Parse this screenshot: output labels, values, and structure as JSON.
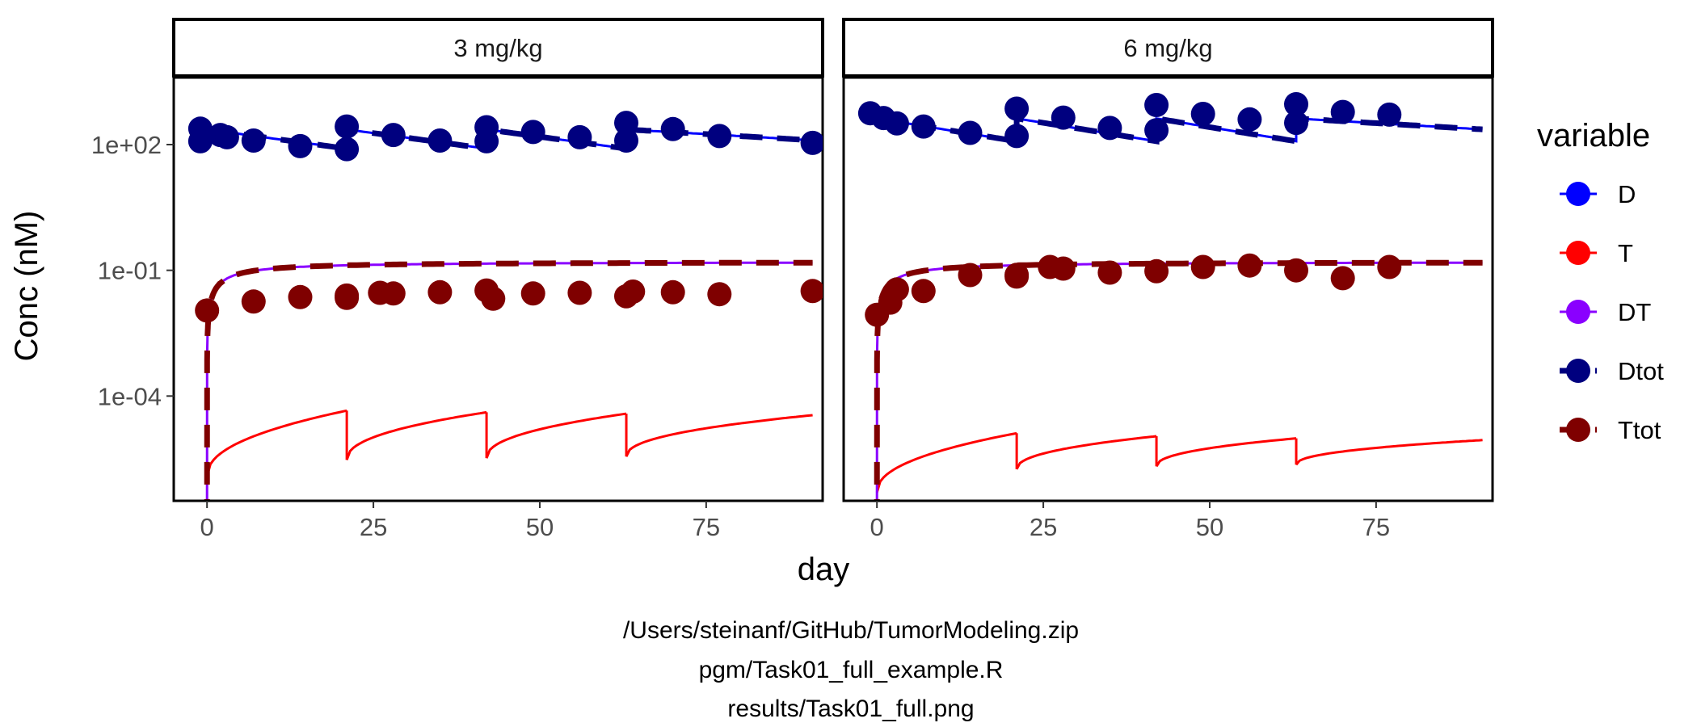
{
  "chart_data": {
    "type": "line",
    "xlabel": "day",
    "ylabel": "Conc (nM)",
    "y_scale": "log10",
    "xlim": [
      -5,
      92.5
    ],
    "ylim_log10": [
      -6.5,
      3.6
    ],
    "x_ticks": [
      0,
      25,
      50,
      75
    ],
    "x_tick_labels": [
      "0",
      "25",
      "50",
      "75"
    ],
    "y_ticks_log10": [
      2,
      -1,
      -4
    ],
    "y_tick_labels": [
      "1e+02",
      "1e-01",
      "1e-04"
    ],
    "grid": false,
    "legend": {
      "title": "variable",
      "position": "right",
      "entries": [
        {
          "name": "D",
          "color": "#0000FF",
          "line": "solid"
        },
        {
          "name": "T",
          "color": "#FF0000",
          "line": "solid"
        },
        {
          "name": "DT",
          "color": "#8A00FF",
          "line": "solid"
        },
        {
          "name": "Dtot",
          "color": "#00007F",
          "line": "dashed"
        },
        {
          "name": "Ttot",
          "color": "#7F0000",
          "line": "dashed"
        }
      ]
    },
    "panels": [
      {
        "label": "3 mg/kg",
        "dose_days": [
          0,
          21,
          42,
          63
        ],
        "D": {
          "peak": 230,
          "trough": 80
        },
        "Dtot": {
          "peak": 230,
          "trough": 80
        },
        "DT": {
          "start": 1e-07,
          "plateau": 0.16
        },
        "Ttot": {
          "start": 1e-07,
          "plateau": 0.16
        },
        "T_segments": [
          [
            1.2e-06,
            4.5e-05
          ],
          [
            3e-06,
            4.1e-05
          ],
          [
            3.3e-06,
            3.8e-05
          ],
          [
            3.6e-06,
            3.5e-05
          ]
        ],
        "observed": {
          "Dtot": [
            [
              -1,
              240
            ],
            [
              -1,
              120
            ],
            [
              2,
              170
            ],
            [
              3,
              150
            ],
            [
              7,
              125
            ],
            [
              14,
              92
            ],
            [
              21,
              78
            ],
            [
              21,
              270
            ],
            [
              28,
              170
            ],
            [
              35,
              125
            ],
            [
              42,
              120
            ],
            [
              42,
              260
            ],
            [
              49,
              200
            ],
            [
              56,
              150
            ],
            [
              63,
              125
            ],
            [
              63,
              330
            ],
            [
              70,
              235
            ],
            [
              77,
              160
            ],
            [
              91,
              110
            ]
          ],
          "Ttot": [
            [
              0,
              0.011
            ],
            [
              7,
              0.018
            ],
            [
              14,
              0.023
            ],
            [
              21,
              0.022
            ],
            [
              21,
              0.025
            ],
            [
              26,
              0.029
            ],
            [
              28,
              0.028
            ],
            [
              35,
              0.03
            ],
            [
              42,
              0.033
            ],
            [
              43,
              0.021
            ],
            [
              49,
              0.028
            ],
            [
              56,
              0.029
            ],
            [
              63,
              0.024
            ],
            [
              64,
              0.031
            ],
            [
              70,
              0.03
            ],
            [
              77,
              0.027
            ],
            [
              91,
              0.032
            ]
          ]
        }
      },
      {
        "label": "6 mg/kg",
        "dose_days": [
          0,
          21,
          42,
          63
        ],
        "D": {
          "peak": 420,
          "trough": 120
        },
        "Dtot": {
          "peak": 420,
          "trough": 120
        },
        "DT": {
          "start": 1e-07,
          "plateau": 0.16
        },
        "Ttot": {
          "start": 1e-07,
          "plateau": 0.16
        },
        "T_segments": [
          [
            5e-07,
            1.3e-05
          ],
          [
            1.8e-06,
            1.1e-05
          ],
          [
            2.1e-06,
            9.8e-06
          ],
          [
            2.3e-06,
            8.9e-06
          ]
        ],
        "observed": {
          "Dtot": [
            [
              -1,
              560
            ],
            [
              1,
              430
            ],
            [
              3,
              320
            ],
            [
              7,
              270
            ],
            [
              14,
              190
            ],
            [
              21,
              160
            ],
            [
              21,
              720
            ],
            [
              28,
              440
            ],
            [
              35,
              250
            ],
            [
              42,
              220
            ],
            [
              42,
              880
            ],
            [
              49,
              540
            ],
            [
              56,
              400
            ],
            [
              63,
              330
            ],
            [
              63,
              920
            ],
            [
              70,
              600
            ],
            [
              77,
              520
            ]
          ],
          "Ttot": [
            [
              0,
              0.0087
            ],
            [
              2,
              0.017
            ],
            [
              3,
              0.035
            ],
            [
              7,
              0.032
            ],
            [
              14,
              0.077
            ],
            [
              21,
              0.071
            ],
            [
              21,
              0.078
            ],
            [
              26,
              0.12
            ],
            [
              28,
              0.11
            ],
            [
              35,
              0.088
            ],
            [
              42,
              0.095
            ],
            [
              49,
              0.12
            ],
            [
              56,
              0.13
            ],
            [
              63,
              0.1
            ],
            [
              70,
              0.065
            ],
            [
              77,
              0.12
            ]
          ]
        }
      }
    ]
  },
  "captions": [
    "/Users/steinanf/GitHub/TumorModeling.zip",
    "pgm/Task01_full_example.R",
    "results/Task01_full.png"
  ]
}
